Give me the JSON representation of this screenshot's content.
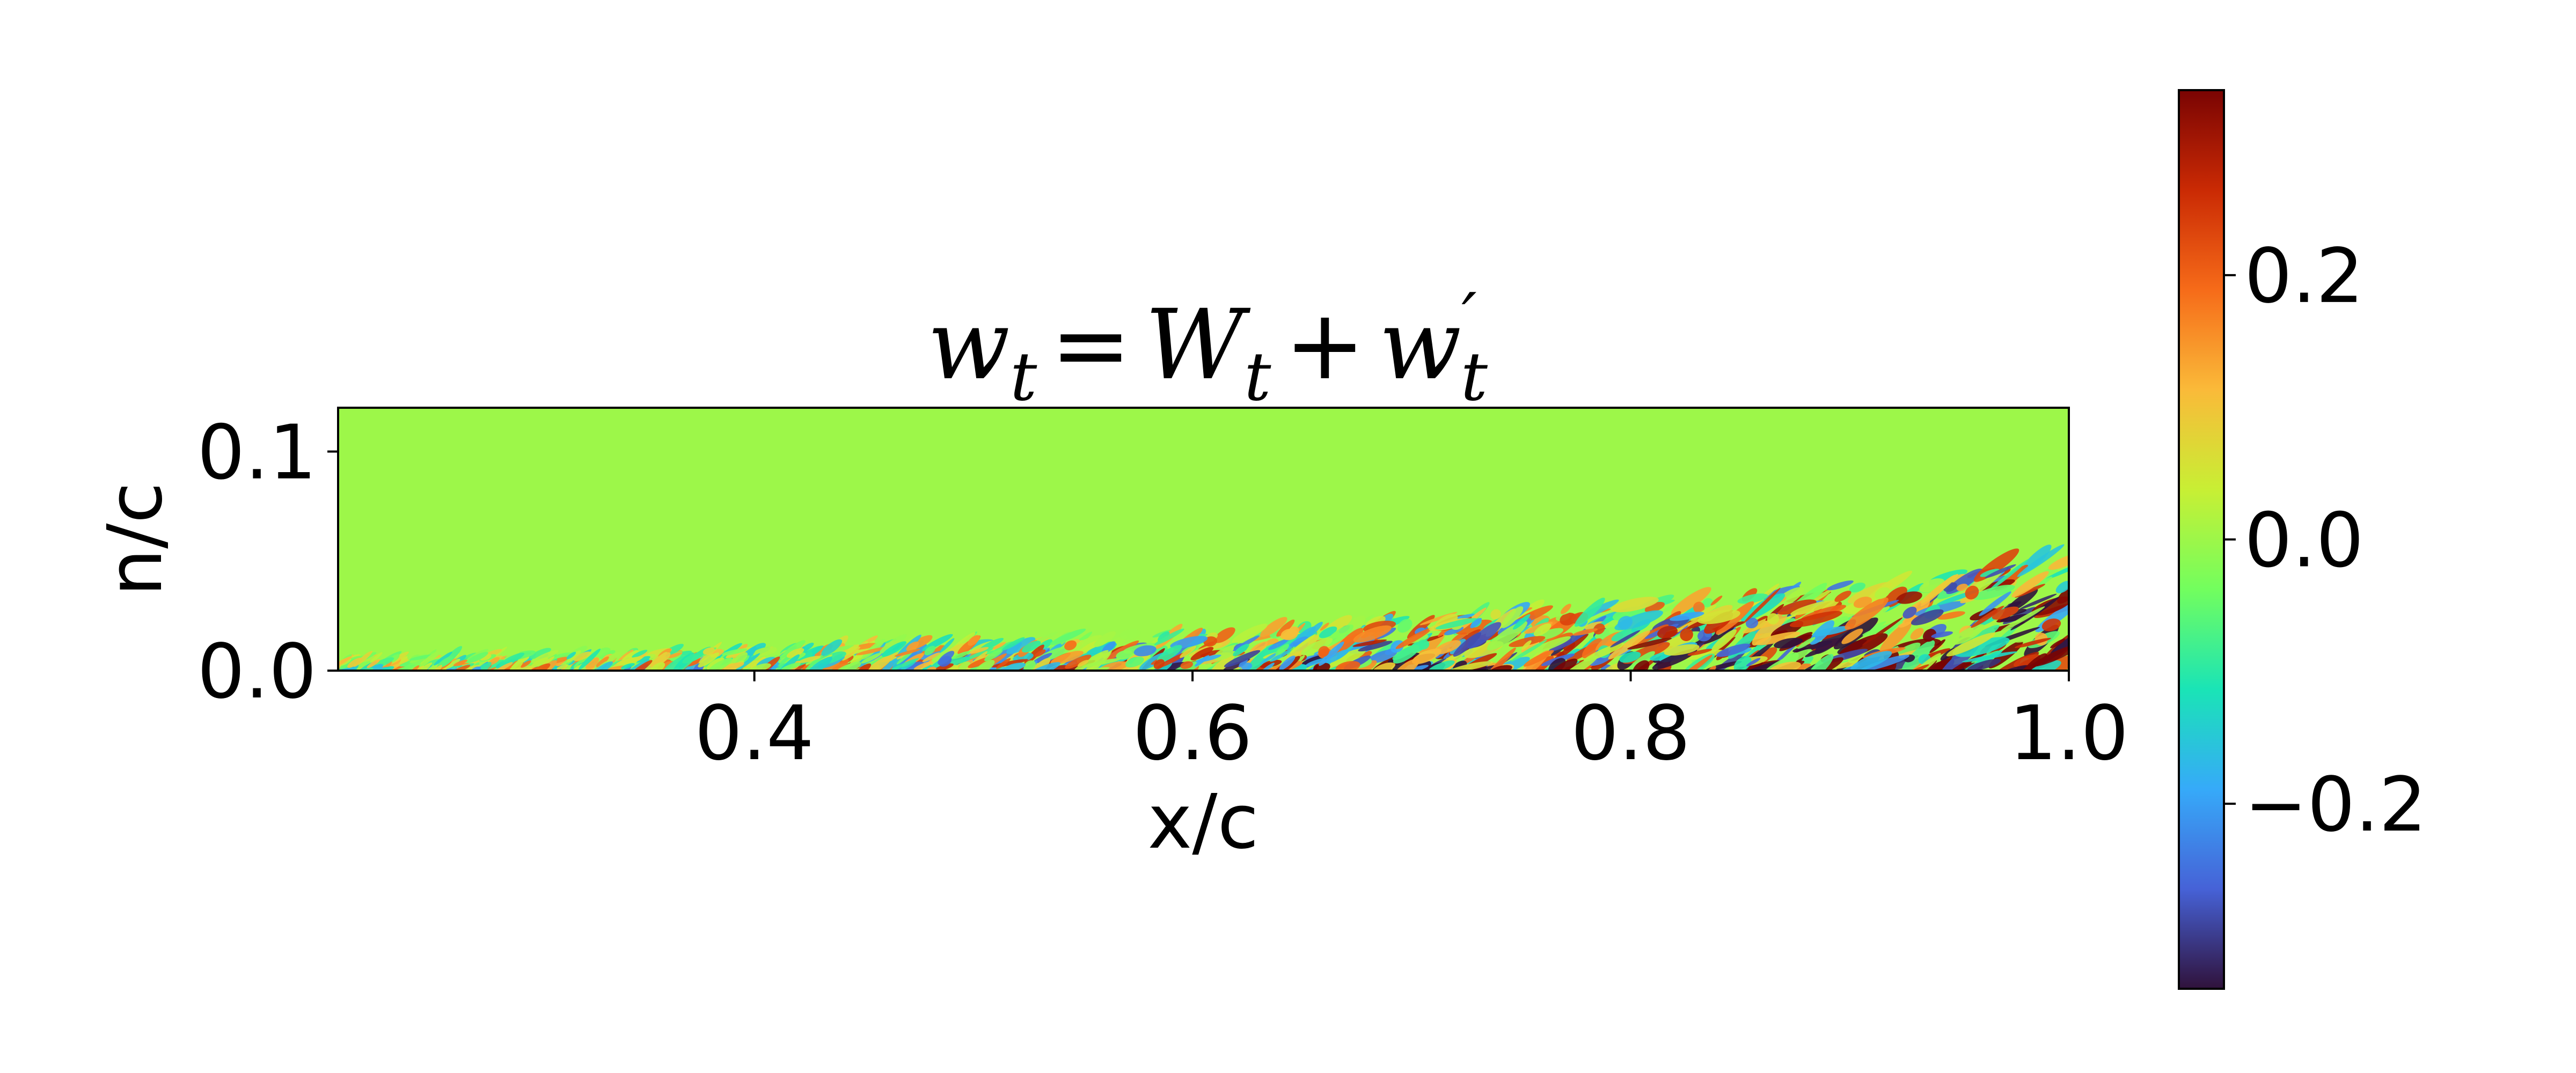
{
  "chart_data": [
    {
      "type": "heatmap",
      "title": "w_t = W_t + w'_t",
      "title_parts": {
        "lhs": "w",
        "lhs_sub": "t",
        "equals": "=",
        "mean": "W",
        "mean_sub": "t",
        "plus": "+",
        "fluct": "w",
        "fluct_prime": "′",
        "fluct_sub": "t"
      },
      "xlabel": "x/c",
      "ylabel": "n/c",
      "xlim": [
        0.21,
        1.0
      ],
      "ylim": [
        0.0,
        0.12
      ],
      "x_ticks": [
        0.4,
        0.6,
        0.8,
        1.0
      ],
      "x_tick_labels": [
        "0.4",
        "0.6",
        "0.8",
        "1.0"
      ],
      "y_ticks": [
        0.0,
        0.1
      ],
      "y_tick_labels": [
        "0.0",
        "0.1"
      ],
      "background_value": 0.0,
      "colormap": "turbo",
      "colormap_stops": [
        "#30123b",
        "#4662d7",
        "#36aaf9",
        "#1ae4b6",
        "#72fe5e",
        "#c8ef34",
        "#faba39",
        "#f66b19",
        "#ca2a04",
        "#7a0403"
      ],
      "grid": false,
      "boundary_layer_thickness": [
        {
          "x": 0.21,
          "n": 0.006
        },
        {
          "x": 0.4,
          "n": 0.01
        },
        {
          "x": 0.6,
          "n": 0.018
        },
        {
          "x": 0.8,
          "n": 0.03
        },
        {
          "x": 0.9,
          "n": 0.04
        },
        {
          "x": 1.0,
          "n": 0.055
        }
      ]
    },
    {
      "type": "heatmap",
      "role": "colorbar",
      "colormap": "turbo",
      "clim": [
        -0.34,
        0.34
      ],
      "ticks": [
        -0.2,
        0.0,
        0.2
      ],
      "tick_labels": [
        "−0.2",
        "0.0",
        "0.2"
      ]
    }
  ]
}
